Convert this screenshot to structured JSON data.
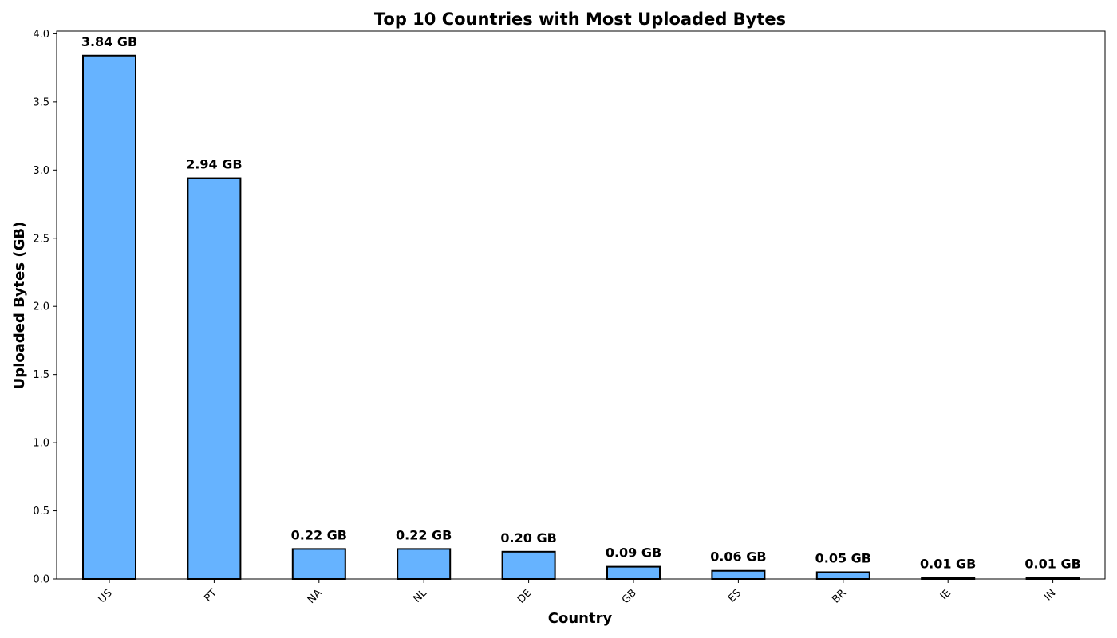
{
  "chart_data": {
    "type": "bar",
    "title": "Top 10 Countries with Most Uploaded Bytes",
    "xlabel": "Country",
    "ylabel": "Uploaded Bytes (GB)",
    "categories": [
      "US",
      "PT",
      "NA",
      "NL",
      "DE",
      "GB",
      "ES",
      "BR",
      "IE",
      "IN"
    ],
    "values": [
      3.84,
      2.94,
      0.22,
      0.22,
      0.2,
      0.09,
      0.06,
      0.05,
      0.01,
      0.01
    ],
    "data_labels": [
      "3.84 GB",
      "2.94 GB",
      "0.22 GB",
      "0.22 GB",
      "0.20 GB",
      "0.09 GB",
      "0.06 GB",
      "0.05 GB",
      "0.01 GB",
      "0.01 GB"
    ],
    "ylim": [
      0,
      4.0
    ],
    "yticks": [
      "0.0",
      "0.5",
      "1.0",
      "1.5",
      "2.0",
      "2.5",
      "3.0",
      "3.5",
      "4.0"
    ],
    "grid": false,
    "bar_color": "#66b3ff",
    "bar_edge_color": "#000000"
  }
}
